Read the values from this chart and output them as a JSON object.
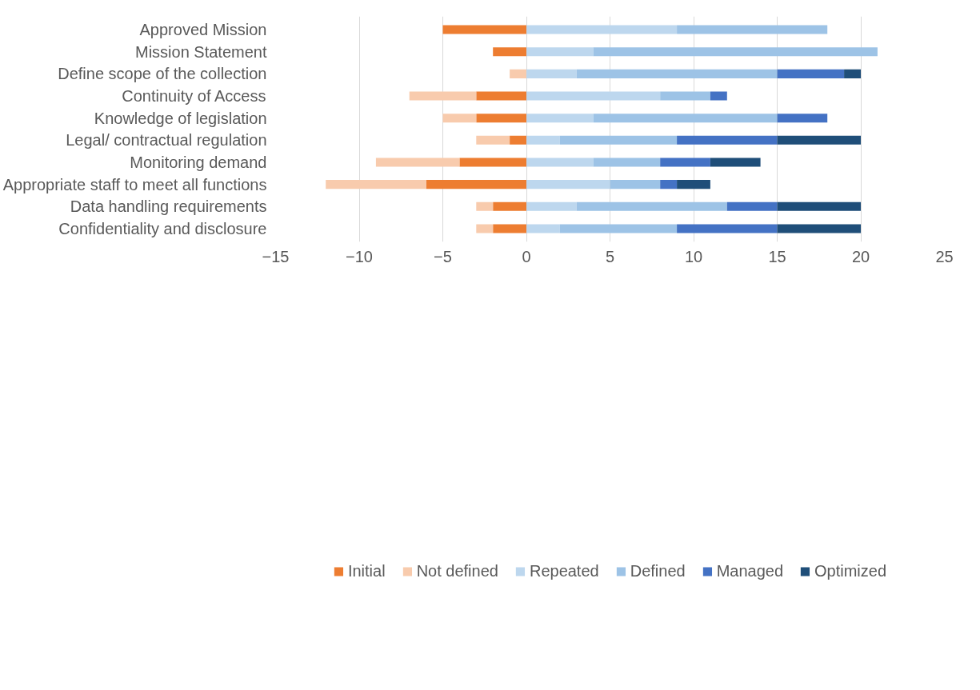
{
  "chart_data": {
    "type": "bar",
    "orientation": "horizontal",
    "stacked": true,
    "categories": [
      "Approved Mission",
      "Mission Statement",
      "Define scope of the collection",
      "Continuity of Access",
      "Knowledge of legislation",
      "Legal/ contractual regulation",
      "Monitoring demand",
      "Appropriate staff to meet all functions",
      "Data handling requirements",
      "Confidentiality and disclosure"
    ],
    "series": [
      {
        "name": "Initial",
        "color": "#ed7d31",
        "values": [
          -5,
          -2,
          null,
          -3,
          -3,
          -1,
          -4,
          -6,
          -2,
          -2
        ]
      },
      {
        "name": "Not defined",
        "color": "#f8cbad",
        "values": [
          null,
          null,
          -1,
          -4,
          -2,
          -2,
          -5,
          -6,
          -1,
          -1
        ]
      },
      {
        "name": "Repeated",
        "color": "#bdd7ee",
        "values": [
          9,
          4,
          3,
          8,
          4,
          2,
          4,
          5,
          3,
          2
        ]
      },
      {
        "name": "Defined",
        "color": "#9dc3e6",
        "values": [
          9,
          17,
          12,
          3,
          11,
          7,
          4,
          3,
          9,
          7
        ]
      },
      {
        "name": "Managed",
        "color": "#4472c4",
        "values": [
          null,
          null,
          4,
          1,
          3,
          6,
          3,
          1,
          3,
          6
        ]
      },
      {
        "name": "Optimized",
        "color": "#1f4e79",
        "values": [
          null,
          null,
          1,
          null,
          null,
          5,
          3,
          2,
          5,
          5
        ]
      }
    ],
    "xlim": [
      -15,
      25
    ],
    "xticks": [
      -15,
      -10,
      -5,
      0,
      5,
      10,
      15,
      20,
      25
    ],
    "grid": "x",
    "legend": "bottom"
  }
}
